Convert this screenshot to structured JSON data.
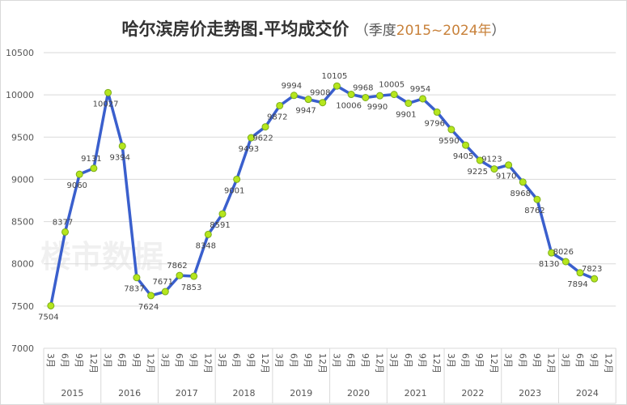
{
  "chart_data": {
    "type": "line",
    "title": "哈尔滨房价走势图.平均成交价",
    "subtitle_prefix": "（季度",
    "subtitle_years": "2015~2024年",
    "subtitle_suffix": "）",
    "watermark": "楼市数据",
    "ylim": [
      7000,
      10500
    ],
    "yticks": [
      7000,
      7500,
      8000,
      8500,
      9000,
      9500,
      10000,
      10500
    ],
    "grid": true,
    "years": [
      "2015",
      "2016",
      "2017",
      "2018",
      "2019",
      "2020",
      "2021",
      "2022",
      "2023",
      "2024"
    ],
    "months": [
      "3月",
      "6月",
      "9月",
      "12月"
    ],
    "series": [
      {
        "name": "平均成交价",
        "color": "#3a5fcd",
        "marker_color": "#b5e61d",
        "values": [
          7504,
          8377,
          9060,
          9131,
          10027,
          9394,
          7837,
          7624,
          7671,
          7862,
          7853,
          8348,
          8591,
          9001,
          9493,
          9622,
          9872,
          9994,
          9947,
          9908,
          10105,
          10006,
          9968,
          9990,
          10005,
          9901,
          9954,
          9796,
          9590,
          9405,
          9225,
          9123,
          9170,
          8968,
          8762,
          8130,
          8026,
          7894,
          7823
        ]
      }
    ]
  }
}
